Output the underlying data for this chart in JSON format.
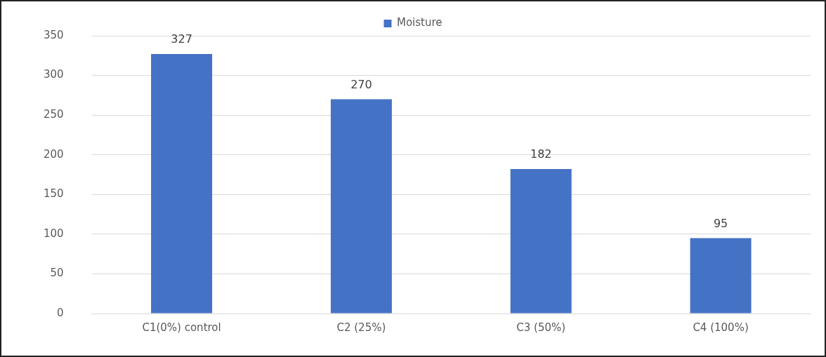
{
  "chart_data": {
    "type": "bar",
    "categories": [
      "C1(0%) control",
      "C2 (25%)",
      "C3 (50%)",
      "C4 (100%)"
    ],
    "series": [
      {
        "name": "Moisture",
        "color": "#4472c4",
        "values": [
          327,
          270,
          182,
          95
        ]
      }
    ],
    "ylim": [
      0,
      350
    ],
    "yticks": [
      0,
      50,
      100,
      150,
      200,
      250,
      300,
      350
    ],
    "grid": "y",
    "legend": "top",
    "data_labels": true
  }
}
